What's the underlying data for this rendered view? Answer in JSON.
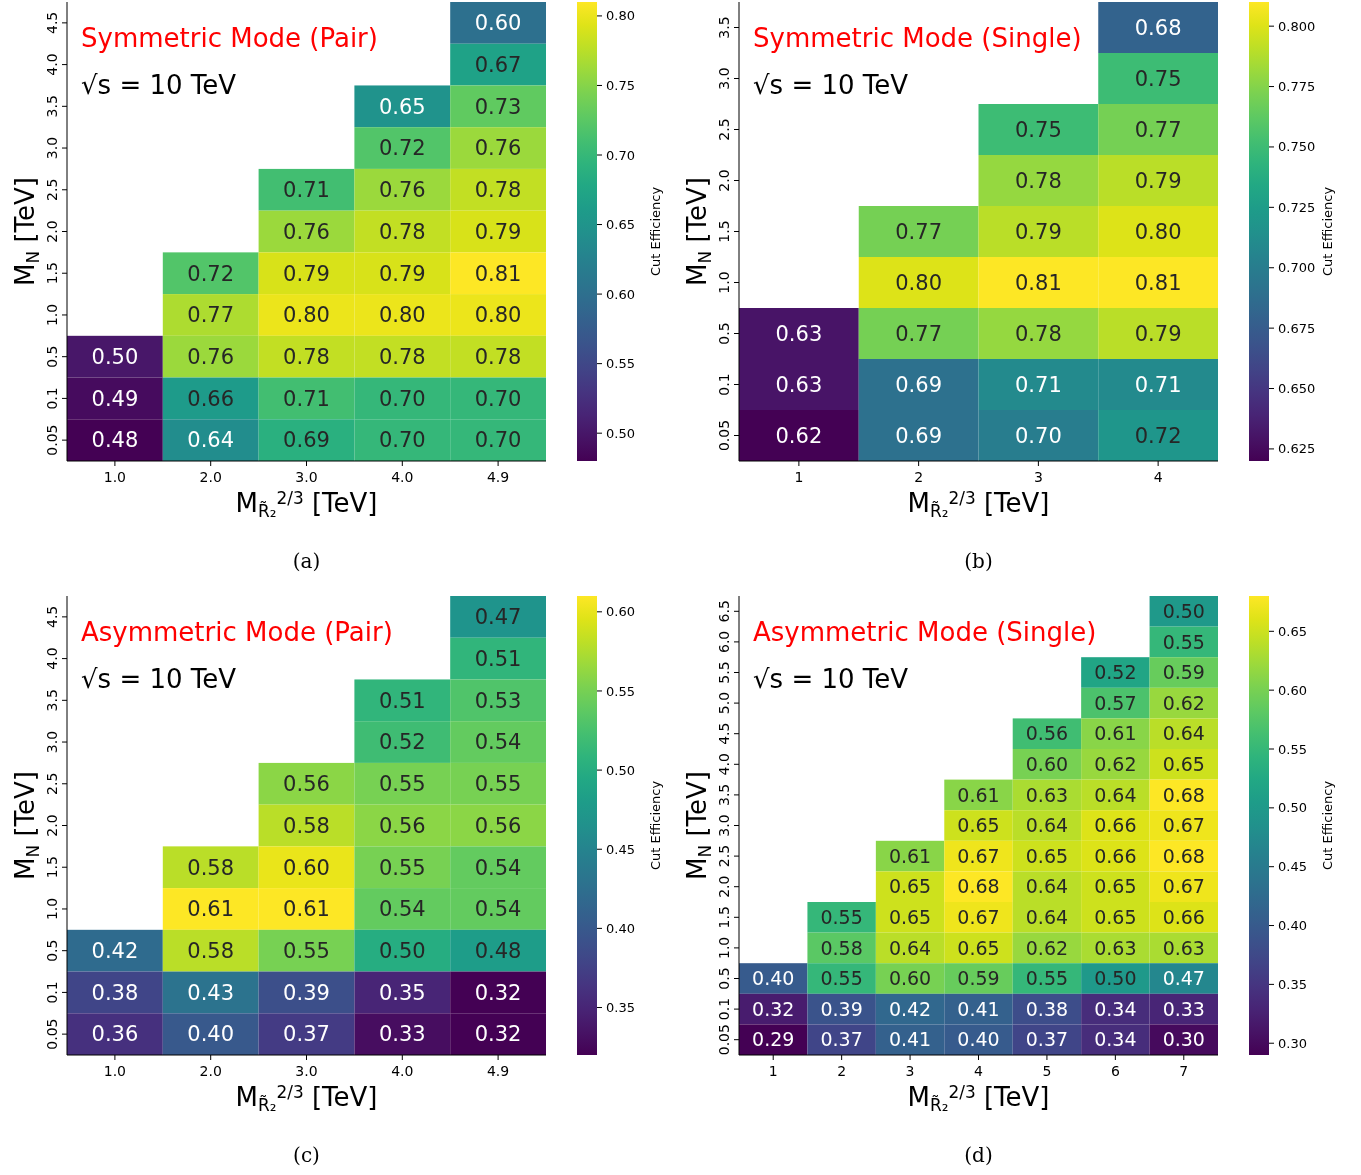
{
  "chart_data": [
    {
      "type": "heatmap",
      "title": "Symmetric Mode (Pair)",
      "annotations": [
        "√s = 10 TeV",
        "(a)"
      ],
      "xlabel": "M$_{R̃₂}$$^{2/3}$ [TeV]",
      "ylabel": "M$_{N}$ [TeV]",
      "clabel": "Cut Efficiency",
      "data_labels": true,
      "categories": [
        "1.0",
        "2.0",
        "3.0",
        "4.0",
        "4.9"
      ],
      "y_categories": [
        "4.5",
        "4.0",
        "3.5",
        "3.0",
        "2.5",
        "2.0",
        "1.5",
        "1.0",
        "0.5",
        "0.1",
        "0.05"
      ],
      "cells": [
        [
          null,
          null,
          null,
          null,
          0.6
        ],
        [
          null,
          null,
          null,
          null,
          0.67
        ],
        [
          null,
          null,
          null,
          0.65,
          0.73
        ],
        [
          null,
          null,
          null,
          0.72,
          0.76
        ],
        [
          null,
          null,
          0.71,
          0.76,
          0.78
        ],
        [
          null,
          null,
          0.76,
          0.78,
          0.79
        ],
        [
          null,
          0.72,
          0.79,
          0.79,
          0.81
        ],
        [
          null,
          0.77,
          0.8,
          0.8,
          0.8
        ],
        [
          0.5,
          0.76,
          0.78,
          0.78,
          0.78
        ],
        [
          0.49,
          0.66,
          0.71,
          0.7,
          0.7
        ],
        [
          0.48,
          0.64,
          0.69,
          0.7,
          0.7
        ]
      ],
      "cell_labels": [
        [
          null,
          null,
          null,
          null,
          "0.60"
        ],
        [
          null,
          null,
          null,
          null,
          "0.67"
        ],
        [
          null,
          null,
          null,
          "0.65",
          "0.73"
        ],
        [
          null,
          null,
          null,
          "0.72",
          "0.76"
        ],
        [
          null,
          null,
          "0.71",
          "0.76",
          "0.78"
        ],
        [
          null,
          null,
          "0.76",
          "0.78",
          "0.79"
        ],
        [
          null,
          "0.72",
          "0.79",
          "0.79",
          "0.81"
        ],
        [
          null,
          "0.77",
          "0.80",
          "0.80",
          "0.80"
        ],
        [
          "0.50",
          "0.76",
          "0.78",
          "0.78",
          "0.78"
        ],
        [
          "0.49",
          "0.66",
          "0.71",
          "0.70",
          "0.70"
        ],
        [
          "0.48",
          "0.64",
          "0.69",
          "0.70",
          "0.70"
        ]
      ],
      "clim": [
        0.48,
        0.81
      ],
      "cticks": [
        {
          "value": 0.5,
          "label": "0.50"
        },
        {
          "value": 0.55,
          "label": "0.55"
        },
        {
          "value": 0.6,
          "label": "0.60"
        },
        {
          "value": 0.65,
          "label": "0.65"
        },
        {
          "value": 0.7,
          "label": "0.70"
        },
        {
          "value": 0.75,
          "label": "0.75"
        },
        {
          "value": 0.8,
          "label": "0.80"
        }
      ]
    },
    {
      "type": "heatmap",
      "title": "Symmetric Mode (Single)",
      "annotations": [
        "√s = 10 TeV",
        "(b)"
      ],
      "xlabel": "M$_{R̃₂}$$^{2/3}$ [TeV]",
      "ylabel": "M$_{N}$ [TeV]",
      "clabel": "Cut Efficiency",
      "data_labels": true,
      "categories": [
        "1",
        "2",
        "3",
        "4"
      ],
      "y_categories": [
        "3.5",
        "3.0",
        "2.5",
        "2.0",
        "1.5",
        "1.0",
        "0.5",
        "0.1",
        "0.05"
      ],
      "cells": [
        [
          null,
          null,
          null,
          0.68
        ],
        [
          null,
          null,
          null,
          0.75
        ],
        [
          null,
          null,
          0.75,
          0.77
        ],
        [
          null,
          null,
          0.78,
          0.79
        ],
        [
          null,
          0.77,
          0.79,
          0.8
        ],
        [
          null,
          0.8,
          0.81,
          0.81
        ],
        [
          0.63,
          0.77,
          0.78,
          0.79
        ],
        [
          0.63,
          0.69,
          0.71,
          0.71
        ],
        [
          0.62,
          0.69,
          0.7,
          0.72
        ]
      ],
      "cell_labels": [
        [
          null,
          null,
          null,
          "0.68"
        ],
        [
          null,
          null,
          null,
          "0.75"
        ],
        [
          null,
          null,
          "0.75",
          "0.77"
        ],
        [
          null,
          null,
          "0.78",
          "0.79"
        ],
        [
          null,
          "0.77",
          "0.79",
          "0.80"
        ],
        [
          null,
          "0.80",
          "0.81",
          "0.81"
        ],
        [
          "0.63",
          "0.77",
          "0.78",
          "0.79"
        ],
        [
          "0.63",
          "0.69",
          "0.71",
          "0.71"
        ],
        [
          "0.62",
          "0.69",
          "0.70",
          "0.72"
        ]
      ],
      "clim": [
        0.62,
        0.81
      ],
      "cticks": [
        {
          "value": 0.625,
          "label": "0.625"
        },
        {
          "value": 0.65,
          "label": "0.650"
        },
        {
          "value": 0.675,
          "label": "0.675"
        },
        {
          "value": 0.7,
          "label": "0.700"
        },
        {
          "value": 0.725,
          "label": "0.725"
        },
        {
          "value": 0.75,
          "label": "0.750"
        },
        {
          "value": 0.775,
          "label": "0.775"
        },
        {
          "value": 0.8,
          "label": "0.800"
        }
      ]
    },
    {
      "type": "heatmap",
      "title": "Asymmetric Mode (Pair)",
      "annotations": [
        "√s = 10 TeV",
        "(c)"
      ],
      "xlabel": "M$_{R̃₂}$$^{2/3}$ [TeV]",
      "ylabel": "M$_{N}$ [TeV]",
      "clabel": "Cut Efficiency",
      "data_labels": true,
      "categories": [
        "1.0",
        "2.0",
        "3.0",
        "4.0",
        "4.9"
      ],
      "y_categories": [
        "4.5",
        "4.0",
        "3.5",
        "3.0",
        "2.5",
        "2.0",
        "1.5",
        "1.0",
        "0.5",
        "0.1",
        "0.05"
      ],
      "cells": [
        [
          null,
          null,
          null,
          null,
          0.47
        ],
        [
          null,
          null,
          null,
          null,
          0.51
        ],
        [
          null,
          null,
          null,
          0.51,
          0.53
        ],
        [
          null,
          null,
          null,
          0.52,
          0.54
        ],
        [
          null,
          null,
          0.56,
          0.55,
          0.55
        ],
        [
          null,
          null,
          0.58,
          0.56,
          0.56
        ],
        [
          null,
          0.58,
          0.6,
          0.55,
          0.54
        ],
        [
          null,
          0.61,
          0.61,
          0.54,
          0.54
        ],
        [
          0.42,
          0.58,
          0.55,
          0.5,
          0.48
        ],
        [
          0.38,
          0.43,
          0.39,
          0.35,
          0.32
        ],
        [
          0.36,
          0.4,
          0.37,
          0.33,
          0.32
        ]
      ],
      "cell_labels": [
        [
          null,
          null,
          null,
          null,
          "0.47"
        ],
        [
          null,
          null,
          null,
          null,
          "0.51"
        ],
        [
          null,
          null,
          null,
          "0.51",
          "0.53"
        ],
        [
          null,
          null,
          null,
          "0.52",
          "0.54"
        ],
        [
          null,
          null,
          "0.56",
          "0.55",
          "0.55"
        ],
        [
          null,
          null,
          "0.58",
          "0.56",
          "0.56"
        ],
        [
          null,
          "0.58",
          "0.60",
          "0.55",
          "0.54"
        ],
        [
          null,
          "0.61",
          "0.61",
          "0.54",
          "0.54"
        ],
        [
          "0.42",
          "0.58",
          "0.55",
          "0.50",
          "0.48"
        ],
        [
          "0.38",
          "0.43",
          "0.39",
          "0.35",
          "0.32"
        ],
        [
          "0.36",
          "0.40",
          "0.37",
          "0.33",
          "0.32"
        ]
      ],
      "clim": [
        0.32,
        0.61
      ],
      "cticks": [
        {
          "value": 0.35,
          "label": "0.35"
        },
        {
          "value": 0.4,
          "label": "0.40"
        },
        {
          "value": 0.45,
          "label": "0.45"
        },
        {
          "value": 0.5,
          "label": "0.50"
        },
        {
          "value": 0.55,
          "label": "0.55"
        },
        {
          "value": 0.6,
          "label": "0.60"
        }
      ]
    },
    {
      "type": "heatmap",
      "title": "Asymmetric Mode (Single)",
      "annotations": [
        "√s = 10 TeV",
        "(d)"
      ],
      "xlabel": "M$_{R̃₂}$$^{2/3}$ [TeV]",
      "ylabel": "M$_{N}$ [TeV]",
      "clabel": "Cut Efficiency",
      "data_labels": true,
      "categories": [
        "1",
        "2",
        "3",
        "4",
        "5",
        "6",
        "7"
      ],
      "y_categories": [
        "6.5",
        "6.0",
        "5.5",
        "5.0",
        "4.5",
        "4.0",
        "3.5",
        "3.0",
        "2.5",
        "2.0",
        "1.5",
        "1.0",
        "0.5",
        "0.1",
        "0.05"
      ],
      "cells": [
        [
          null,
          null,
          null,
          null,
          null,
          null,
          0.5
        ],
        [
          null,
          null,
          null,
          null,
          null,
          null,
          0.55
        ],
        [
          null,
          null,
          null,
          null,
          null,
          0.52,
          0.59
        ],
        [
          null,
          null,
          null,
          null,
          null,
          0.57,
          0.62
        ],
        [
          null,
          null,
          null,
          null,
          0.56,
          0.61,
          0.64
        ],
        [
          null,
          null,
          null,
          null,
          0.6,
          0.62,
          0.65
        ],
        [
          null,
          null,
          null,
          0.61,
          0.63,
          0.64,
          0.68
        ],
        [
          null,
          null,
          null,
          0.65,
          0.64,
          0.66,
          0.67
        ],
        [
          null,
          null,
          0.61,
          0.67,
          0.65,
          0.66,
          0.68
        ],
        [
          null,
          null,
          0.65,
          0.68,
          0.64,
          0.65,
          0.67
        ],
        [
          null,
          0.55,
          0.65,
          0.67,
          0.64,
          0.65,
          0.66
        ],
        [
          null,
          0.58,
          0.64,
          0.65,
          0.62,
          0.63,
          0.63
        ],
        [
          0.4,
          0.55,
          0.6,
          0.59,
          0.55,
          0.5,
          0.47
        ],
        [
          0.32,
          0.39,
          0.42,
          0.41,
          0.38,
          0.34,
          0.33
        ],
        [
          0.29,
          0.37,
          0.41,
          0.4,
          0.37,
          0.34,
          0.3
        ]
      ],
      "cell_labels": [
        [
          null,
          null,
          null,
          null,
          null,
          null,
          "0.50"
        ],
        [
          null,
          null,
          null,
          null,
          null,
          null,
          "0.55"
        ],
        [
          null,
          null,
          null,
          null,
          null,
          "0.52",
          "0.59"
        ],
        [
          null,
          null,
          null,
          null,
          null,
          "0.57",
          "0.62"
        ],
        [
          null,
          null,
          null,
          null,
          "0.56",
          "0.61",
          "0.64"
        ],
        [
          null,
          null,
          null,
          null,
          "0.60",
          "0.62",
          "0.65"
        ],
        [
          null,
          null,
          null,
          "0.61",
          "0.63",
          "0.64",
          "0.68"
        ],
        [
          null,
          null,
          null,
          "0.65",
          "0.64",
          "0.66",
          "0.67"
        ],
        [
          null,
          null,
          "0.61",
          "0.67",
          "0.65",
          "0.66",
          "0.68"
        ],
        [
          null,
          null,
          "0.65",
          "0.68",
          "0.64",
          "0.65",
          "0.67"
        ],
        [
          null,
          "0.55",
          "0.65",
          "0.67",
          "0.64",
          "0.65",
          "0.66"
        ],
        [
          null,
          "0.58",
          "0.64",
          "0.65",
          "0.62",
          "0.63",
          "0.63"
        ],
        [
          "0.40",
          "0.55",
          "0.60",
          "0.59",
          "0.55",
          "0.50",
          "0.47"
        ],
        [
          "0.32",
          "0.39",
          "0.42",
          "0.41",
          "0.38",
          "0.34",
          "0.33"
        ],
        [
          "0.29",
          "0.37",
          "0.41",
          "0.40",
          "0.37",
          "0.34",
          "0.30"
        ]
      ],
      "clim": [
        0.29,
        0.68
      ],
      "cticks": [
        {
          "value": 0.3,
          "label": "0.30"
        },
        {
          "value": 0.35,
          "label": "0.35"
        },
        {
          "value": 0.4,
          "label": "0.40"
        },
        {
          "value": 0.45,
          "label": "0.45"
        },
        {
          "value": 0.5,
          "label": "0.50"
        },
        {
          "value": 0.55,
          "label": "0.55"
        },
        {
          "value": 0.6,
          "label": "0.60"
        },
        {
          "value": 0.65,
          "label": "0.65"
        }
      ]
    }
  ]
}
